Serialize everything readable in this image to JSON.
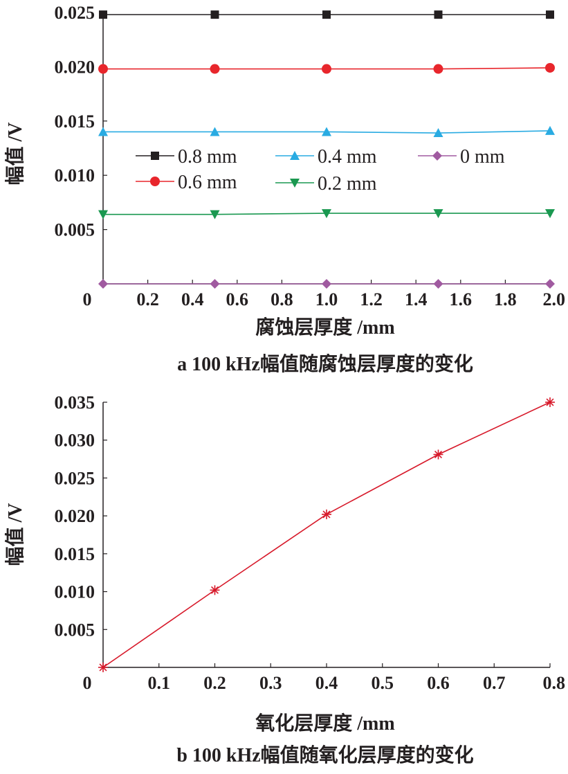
{
  "chart_data": [
    {
      "type": "line",
      "caption": "a  100 kHz幅值随腐蚀层厚度的变化",
      "xlabel": "腐蚀层厚度 /mm",
      "ylabel": "幅值 /V",
      "xlim": [
        0,
        2.0
      ],
      "ylim": [
        0,
        0.025
      ],
      "x_ticks": [
        "0",
        "0.2",
        "0.4",
        "0.6",
        "0.8",
        "1.0",
        "1.2",
        "1.4",
        "1.6",
        "1.8",
        "2.0"
      ],
      "y_ticks": [
        "0.005",
        "0.010",
        "0.015",
        "0.020",
        "0.025"
      ],
      "x": [
        0,
        0.5,
        1.0,
        1.5,
        2.0
      ],
      "legend_position": "center",
      "grid": false,
      "series": [
        {
          "name": "0.8 mm",
          "values": [
            0.0248,
            0.0248,
            0.0248,
            0.0248,
            0.0248
          ],
          "color": "#231f20",
          "marker": "square"
        },
        {
          "name": "0.6 mm",
          "values": [
            0.0198,
            0.0198,
            0.0198,
            0.0198,
            0.0199
          ],
          "color": "#e8262c",
          "marker": "circle"
        },
        {
          "name": "0.4 mm",
          "values": [
            0.014,
            0.014,
            0.014,
            0.0139,
            0.0141
          ],
          "color": "#29abe2",
          "marker": "triangle-up"
        },
        {
          "name": "0.2 mm",
          "values": [
            0.0064,
            0.0064,
            0.0065,
            0.0065,
            0.0065
          ],
          "color": "#1a9850",
          "marker": "triangle-down"
        },
        {
          "name": "0 mm",
          "values": [
            0,
            0,
            0,
            0,
            0
          ],
          "color": "#a05aa0",
          "marker": "diamond"
        }
      ]
    },
    {
      "type": "line",
      "caption": "b  100 kHz幅值随氧化层厚度的变化",
      "xlabel": "氧化层厚度 /mm",
      "ylabel": "幅值 /V",
      "xlim": [
        0,
        0.8
      ],
      "ylim": [
        0,
        0.035
      ],
      "x_ticks": [
        "0",
        "0.1",
        "0.2",
        "0.3",
        "0.4",
        "0.5",
        "0.6",
        "0.7",
        "0.8"
      ],
      "y_ticks": [
        "0.005",
        "0.010",
        "0.015",
        "0.020",
        "0.025",
        "0.030",
        "0.035"
      ],
      "x": [
        0,
        0.2,
        0.4,
        0.6,
        0.8
      ],
      "grid": false,
      "series": [
        {
          "values": [
            0,
            0.0102,
            0.0202,
            0.0281,
            0.035
          ],
          "color": "#d7192a",
          "marker": "asterisk"
        }
      ]
    }
  ]
}
